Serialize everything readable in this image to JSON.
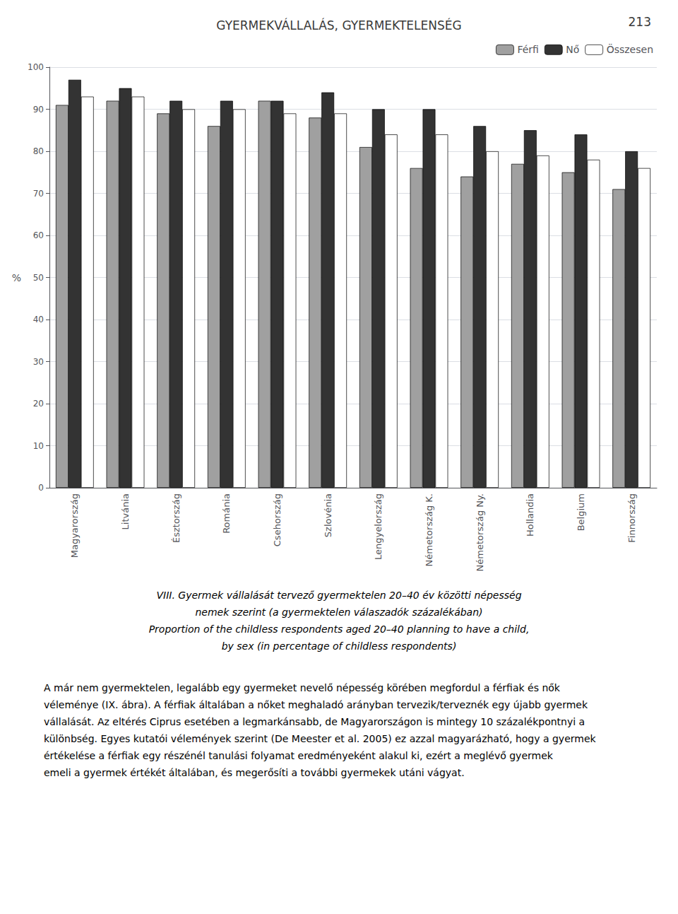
{
  "chart_data": {
    "type": "bar",
    "title": "GYERMEKVÁLLALÁS, GYERMEKTELENSÉG",
    "page_number": "213",
    "categories": [
      "Magyarország",
      "Litvánia",
      "Észtország",
      "Románia",
      "Csehország",
      "Szlovénia",
      "Lengyelország",
      "Németország K.",
      "Németország Ny.",
      "Hollandia",
      "Belgium",
      "Finnország"
    ],
    "series": [
      {
        "name": "Férfi",
        "color": "#a0a0a0",
        "values": [
          91,
          92,
          89,
          86,
          92,
          88,
          81,
          76,
          74,
          77,
          75,
          71
        ]
      },
      {
        "name": "Nő",
        "color": "#333333",
        "values": [
          97,
          95,
          92,
          92,
          92,
          94,
          90,
          90,
          86,
          85,
          84,
          80
        ]
      },
      {
        "name": "Összesen",
        "color": "#ffffff",
        "values": [
          93,
          93,
          90,
          90,
          89,
          89,
          84,
          84,
          80,
          79,
          78,
          76
        ]
      }
    ],
    "ylabel": "%",
    "ylim": [
      0,
      100
    ],
    "yticks": [
      0,
      10,
      20,
      30,
      40,
      50,
      60,
      70,
      80,
      90,
      100
    ],
    "grid": true,
    "legend": "upper right",
    "caption": [
      "VIII. Gyermek vállalását tervező gyermektelen 20–40 év közötti népesség",
      "nemek szerint (a gyermektelen válaszadók százalékában)",
      "Proportion of the childless respondents aged 20–40 planning to have a child,",
      "by sex (in percentage of childless respondents)"
    ],
    "body_text": "A már nem gyermektelen, legalább egy gyermeket nevelő népesség körében megfordul a férfiak és nők véleménye (IX. ábra). A férfiak általában a nőket meghaladó arányban tervezik/terveznék egy újabb gyermek vállalását. Az eltérés Ciprus esetében a legmarkánsabb, de Magyarországon is mintegy 10 százalékpontnyi a különbség. Egyes kutatói vélemények szerint (De Meester et al. 2005) ez azzal magyarázható, hogy a gyermek értékelése a férfiak egy részénél tanulási folyamat eredményeként alakul ki, ezért a meglévő gyermek emeli a gyermek értékét általában, és megerősíti a további gyermekek utáni vágyat."
  }
}
